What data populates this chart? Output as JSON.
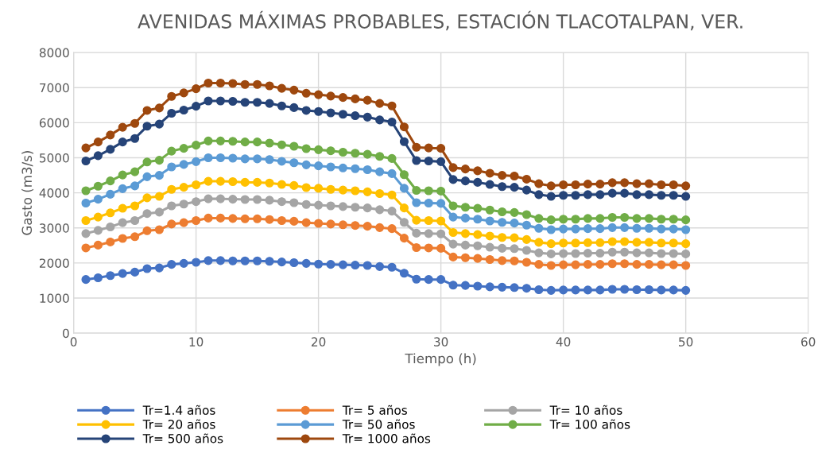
{
  "chart_data": {
    "type": "line",
    "title": "AVENIDAS MÁXIMAS PROBABLES, ESTACIÓN TLACOTALPAN, VER.",
    "xlabel": "Tiempo (h)",
    "ylabel": "Gasto (m3/s)",
    "x": [
      1,
      2,
      3,
      4,
      5,
      6,
      7,
      8,
      9,
      10,
      11,
      12,
      13,
      14,
      15,
      16,
      17,
      18,
      19,
      20,
      21,
      22,
      23,
      24,
      25,
      26,
      27,
      28,
      29,
      30,
      31,
      32,
      33,
      34,
      35,
      36,
      37,
      38,
      39,
      40,
      41,
      42,
      43,
      44,
      45,
      46,
      47,
      48,
      49,
      50
    ],
    "xlim": [
      0,
      60
    ],
    "xticks": [
      0,
      10,
      20,
      30,
      40,
      50,
      60
    ],
    "ylim": [
      0,
      8000
    ],
    "yticks": [
      0,
      1000,
      2000,
      3000,
      4000,
      5000,
      6000,
      7000,
      8000
    ],
    "grid": true,
    "legend": "bottom",
    "marker": "circle",
    "line_style": "solid",
    "series": [
      {
        "name": "Tr=1.4 años",
        "color": "#4472c4",
        "values": [
          1530,
          1580,
          1640,
          1700,
          1740,
          1840,
          1860,
          1960,
          1990,
          2020,
          2070,
          2070,
          2060,
          2060,
          2060,
          2050,
          2030,
          2010,
          1990,
          1970,
          1960,
          1950,
          1940,
          1930,
          1900,
          1880,
          1710,
          1540,
          1530,
          1530,
          1370,
          1360,
          1340,
          1320,
          1310,
          1300,
          1280,
          1240,
          1220,
          1230,
          1230,
          1230,
          1230,
          1250,
          1250,
          1240,
          1240,
          1230,
          1230,
          1220
        ]
      },
      {
        "name": "Tr= 5 años",
        "color": "#ed7d31",
        "values": [
          2430,
          2510,
          2600,
          2700,
          2750,
          2920,
          2950,
          3110,
          3150,
          3210,
          3280,
          3280,
          3270,
          3260,
          3260,
          3240,
          3210,
          3190,
          3150,
          3130,
          3110,
          3090,
          3070,
          3050,
          3010,
          2980,
          2710,
          2440,
          2430,
          2420,
          2170,
          2150,
          2130,
          2100,
          2070,
          2060,
          2020,
          1960,
          1930,
          1950,
          1950,
          1960,
          1960,
          1980,
          1980,
          1960,
          1960,
          1950,
          1950,
          1930
        ]
      },
      {
        "name": "Tr= 10 años",
        "color": "#a5a5a5",
        "values": [
          2840,
          2930,
          3030,
          3150,
          3210,
          3410,
          3450,
          3630,
          3680,
          3750,
          3830,
          3830,
          3820,
          3810,
          3810,
          3790,
          3750,
          3720,
          3670,
          3650,
          3630,
          3610,
          3590,
          3570,
          3520,
          3480,
          3160,
          2850,
          2840,
          2830,
          2540,
          2510,
          2490,
          2450,
          2420,
          2410,
          2360,
          2290,
          2260,
          2270,
          2270,
          2280,
          2280,
          2310,
          2310,
          2290,
          2290,
          2270,
          2270,
          2260
        ]
      },
      {
        "name": "Tr= 20 años",
        "color": "#ffc000",
        "values": [
          3210,
          3310,
          3430,
          3560,
          3630,
          3860,
          3900,
          4100,
          4160,
          4230,
          4330,
          4330,
          4320,
          4300,
          4300,
          4280,
          4240,
          4210,
          4150,
          4130,
          4100,
          4080,
          4060,
          4030,
          3980,
          3940,
          3570,
          3220,
          3210,
          3200,
          2870,
          2840,
          2810,
          2770,
          2730,
          2720,
          2670,
          2590,
          2550,
          2570,
          2570,
          2580,
          2580,
          2610,
          2610,
          2590,
          2590,
          2570,
          2570,
          2550
        ]
      },
      {
        "name": "Tr= 50 años",
        "color": "#5b9bd5",
        "values": [
          3710,
          3820,
          3960,
          4120,
          4200,
          4460,
          4500,
          4740,
          4810,
          4890,
          5000,
          5000,
          4990,
          4970,
          4970,
          4950,
          4900,
          4860,
          4800,
          4770,
          4740,
          4710,
          4690,
          4660,
          4600,
          4550,
          4130,
          3720,
          3710,
          3700,
          3310,
          3280,
          3250,
          3200,
          3160,
          3140,
          3080,
          2990,
          2950,
          2970,
          2970,
          2980,
          2980,
          3010,
          3010,
          2990,
          2990,
          2970,
          2970,
          2950
        ]
      },
      {
        "name": "Tr= 100 años",
        "color": "#70ad47",
        "values": [
          4060,
          4190,
          4340,
          4510,
          4600,
          4880,
          4930,
          5190,
          5270,
          5360,
          5480,
          5480,
          5470,
          5450,
          5450,
          5420,
          5370,
          5330,
          5260,
          5230,
          5200,
          5160,
          5130,
          5100,
          5040,
          4980,
          4520,
          4070,
          4060,
          4050,
          3630,
          3590,
          3560,
          3510,
          3460,
          3440,
          3380,
          3270,
          3230,
          3250,
          3250,
          3270,
          3270,
          3300,
          3300,
          3270,
          3270,
          3250,
          3250,
          3230
        ]
      },
      {
        "name": "Tr= 500 años",
        "color": "#264478",
        "values": [
          4910,
          5060,
          5240,
          5450,
          5550,
          5900,
          5960,
          6270,
          6360,
          6470,
          6620,
          6620,
          6610,
          6580,
          6580,
          6550,
          6480,
          6430,
          6350,
          6320,
          6280,
          6240,
          6200,
          6160,
          6080,
          6020,
          5460,
          4920,
          4910,
          4890,
          4380,
          4340,
          4300,
          4240,
          4180,
          4160,
          4080,
          3950,
          3900,
          3930,
          3930,
          3950,
          3950,
          3990,
          3990,
          3950,
          3950,
          3930,
          3930,
          3900
        ]
      },
      {
        "name": "Tr= 1000 años",
        "color": "#9e480e",
        "values": [
          5280,
          5450,
          5650,
          5870,
          5980,
          6350,
          6420,
          6750,
          6850,
          6970,
          7130,
          7130,
          7120,
          7090,
          7090,
          7050,
          6980,
          6930,
          6840,
          6800,
          6760,
          6720,
          6680,
          6640,
          6550,
          6480,
          5880,
          5300,
          5280,
          5270,
          4720,
          4680,
          4630,
          4560,
          4500,
          4480,
          4390,
          4260,
          4200,
          4230,
          4230,
          4250,
          4250,
          4290,
          4290,
          4260,
          4260,
          4230,
          4230,
          4200
        ]
      }
    ]
  }
}
